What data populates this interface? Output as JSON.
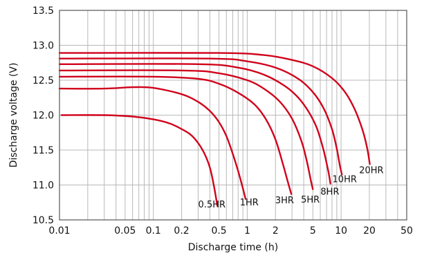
{
  "chart_data": {
    "type": "line",
    "title": "",
    "xlabel": "Discharge time (h)",
    "ylabel": "Discharge voltage (V)",
    "x_scale": "log",
    "xlim": [
      0.01,
      50
    ],
    "ylim": [
      10.5,
      13.5
    ],
    "grid": true,
    "legend": "none",
    "line_color": "#d0021b",
    "x_ticks": [
      {
        "value": 0.01,
        "label": "0.01"
      },
      {
        "value": 0.05,
        "label": "0.05"
      },
      {
        "value": 0.1,
        "label": "0.1"
      },
      {
        "value": 0.2,
        "label": "0.2"
      },
      {
        "value": 0.5,
        "label": "0.5"
      },
      {
        "value": 1,
        "label": "1"
      },
      {
        "value": 2,
        "label": "2"
      },
      {
        "value": 5,
        "label": "5"
      },
      {
        "value": 10,
        "label": "10"
      },
      {
        "value": 20,
        "label": "20"
      },
      {
        "value": 50,
        "label": "50"
      }
    ],
    "y_ticks": [
      {
        "value": 10.5,
        "label": "10.5"
      },
      {
        "value": 11.0,
        "label": "11.0"
      },
      {
        "value": 11.5,
        "label": "11.5"
      },
      {
        "value": 12.0,
        "label": "12.0"
      },
      {
        "value": 12.5,
        "label": "12.5"
      },
      {
        "value": 13.0,
        "label": "13.0"
      },
      {
        "value": 13.5,
        "label": "13.5"
      }
    ],
    "series": [
      {
        "name": "0.5HR",
        "label_at": [
          0.42,
          10.68
        ],
        "points": [
          [
            0.0105,
            12.0
          ],
          [
            0.03,
            12.0
          ],
          [
            0.06,
            11.98
          ],
          [
            0.1,
            11.94
          ],
          [
            0.15,
            11.88
          ],
          [
            0.2,
            11.8
          ],
          [
            0.25,
            11.72
          ],
          [
            0.3,
            11.6
          ],
          [
            0.35,
            11.45
          ],
          [
            0.4,
            11.25
          ],
          [
            0.44,
            11.0
          ],
          [
            0.47,
            10.78
          ],
          [
            0.48,
            10.7
          ]
        ]
      },
      {
        "name": "1HR",
        "label_at": [
          1.05,
          10.71
        ],
        "points": [
          [
            0.01,
            12.38
          ],
          [
            0.03,
            12.38
          ],
          [
            0.06,
            12.4
          ],
          [
            0.1,
            12.39
          ],
          [
            0.2,
            12.3
          ],
          [
            0.3,
            12.19
          ],
          [
            0.4,
            12.06
          ],
          [
            0.5,
            11.9
          ],
          [
            0.6,
            11.7
          ],
          [
            0.7,
            11.45
          ],
          [
            0.8,
            11.2
          ],
          [
            0.9,
            10.95
          ],
          [
            0.96,
            10.8
          ]
        ]
      },
      {
        "name": "3HR",
        "label_at": [
          2.5,
          10.74
        ],
        "points": [
          [
            0.01,
            12.55
          ],
          [
            0.1,
            12.55
          ],
          [
            0.3,
            12.52
          ],
          [
            0.5,
            12.45
          ],
          [
            0.8,
            12.32
          ],
          [
            1.2,
            12.15
          ],
          [
            1.6,
            11.93
          ],
          [
            2.0,
            11.65
          ],
          [
            2.4,
            11.3
          ],
          [
            2.7,
            11.05
          ],
          [
            2.95,
            10.87
          ]
        ]
      },
      {
        "name": "5HR",
        "label_at": [
          4.7,
          10.75
        ],
        "points": [
          [
            0.01,
            12.64
          ],
          [
            0.2,
            12.64
          ],
          [
            0.5,
            12.6
          ],
          [
            1.0,
            12.5
          ],
          [
            1.5,
            12.38
          ],
          [
            2.2,
            12.2
          ],
          [
            3.0,
            11.95
          ],
          [
            3.8,
            11.62
          ],
          [
            4.3,
            11.35
          ],
          [
            4.75,
            11.07
          ],
          [
            5.0,
            10.94
          ]
        ]
      },
      {
        "name": "8HR",
        "label_at": [
          7.6,
          10.86
        ],
        "points": [
          [
            0.01,
            12.73
          ],
          [
            0.3,
            12.73
          ],
          [
            0.8,
            12.68
          ],
          [
            1.5,
            12.58
          ],
          [
            2.5,
            12.42
          ],
          [
            3.5,
            12.25
          ],
          [
            4.5,
            12.05
          ],
          [
            5.5,
            11.82
          ],
          [
            6.5,
            11.5
          ],
          [
            7.3,
            11.2
          ],
          [
            7.7,
            11.02
          ]
        ]
      },
      {
        "name": "10HR",
        "label_at": [
          10.9,
          11.04
        ],
        "points": [
          [
            0.01,
            12.81
          ],
          [
            0.4,
            12.81
          ],
          [
            1.0,
            12.77
          ],
          [
            2.0,
            12.68
          ],
          [
            3.5,
            12.52
          ],
          [
            5.0,
            12.33
          ],
          [
            6.5,
            12.1
          ],
          [
            8.0,
            11.8
          ],
          [
            9.0,
            11.52
          ],
          [
            9.7,
            11.28
          ],
          [
            10.2,
            11.15
          ]
        ]
      },
      {
        "name": "20HR",
        "label_at": [
          21.0,
          11.17
        ],
        "points": [
          [
            0.01,
            12.89
          ],
          [
            0.5,
            12.89
          ],
          [
            1.5,
            12.86
          ],
          [
            3.0,
            12.79
          ],
          [
            5.0,
            12.7
          ],
          [
            8.0,
            12.53
          ],
          [
            11.0,
            12.33
          ],
          [
            14.0,
            12.08
          ],
          [
            17.0,
            11.78
          ],
          [
            19.0,
            11.52
          ],
          [
            20.2,
            11.3
          ]
        ]
      }
    ]
  }
}
